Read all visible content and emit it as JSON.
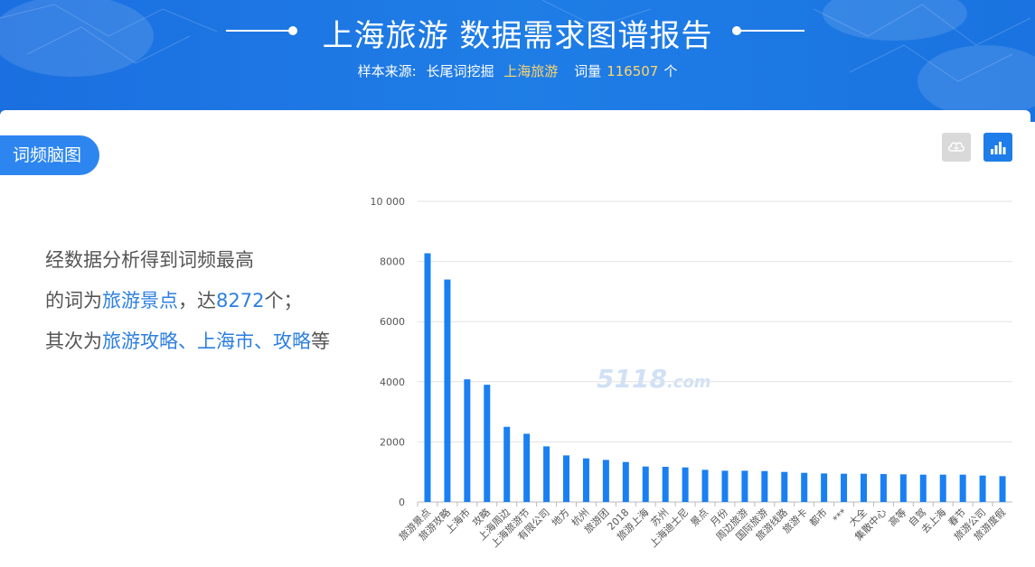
{
  "header": {
    "title": "上海旅游 数据需求图谱报告",
    "source_label": "样本来源:",
    "source_type": "长尾词挖掘",
    "keyword": "上海旅游",
    "volume_label": "词量",
    "volume_value": "116507",
    "volume_unit": "个"
  },
  "tab": {
    "label": "词频脑图"
  },
  "toolbar": {
    "wordcloud_icon": "brain-icon",
    "bar_icon": "bar-chart-icon"
  },
  "summary": {
    "line1": "经数据分析得到词频最高",
    "line2_prefix": "的词为",
    "top_word": "旅游景点",
    "line2_mid": "，达",
    "top_count": "8272",
    "line2_suffix": "个；",
    "line3_prefix": "其次为",
    "others": "旅游攻略、上海市、攻略",
    "line3_suffix": "等"
  },
  "watermark": {
    "text": "5118",
    "suffix": ".com"
  },
  "colors": {
    "accent": "#1a80f2",
    "header": "#1f7de6",
    "highlight": "#ffd66b"
  },
  "chart_data": {
    "type": "bar",
    "categories": [
      "旅游景点",
      "旅游攻略",
      "上海市",
      "攻略",
      "上海周边",
      "上海旅游节",
      "有限公司",
      "地方",
      "杭州",
      "旅游团",
      "2018",
      "旅游上海",
      "苏州",
      "上海迪士尼",
      "景点",
      "月份",
      "周边旅游",
      "国际旅游",
      "旅游线路",
      "旅游卡",
      "都市",
      "***",
      "大全",
      "集散中心",
      "高等",
      "自驾",
      "去上海",
      "春节",
      "旅游公司",
      "旅游度假"
    ],
    "values": [
      8272,
      7400,
      4080,
      3900,
      2500,
      2270,
      1850,
      1550,
      1450,
      1400,
      1330,
      1180,
      1170,
      1150,
      1070,
      1040,
      1040,
      1030,
      1000,
      970,
      950,
      940,
      940,
      930,
      920,
      910,
      910,
      910,
      880,
      860
    ],
    "yticks": [
      "0",
      "2000",
      "4000",
      "6000",
      "8000",
      "10 000"
    ],
    "ylim": [
      0,
      10000
    ],
    "grid": true
  }
}
